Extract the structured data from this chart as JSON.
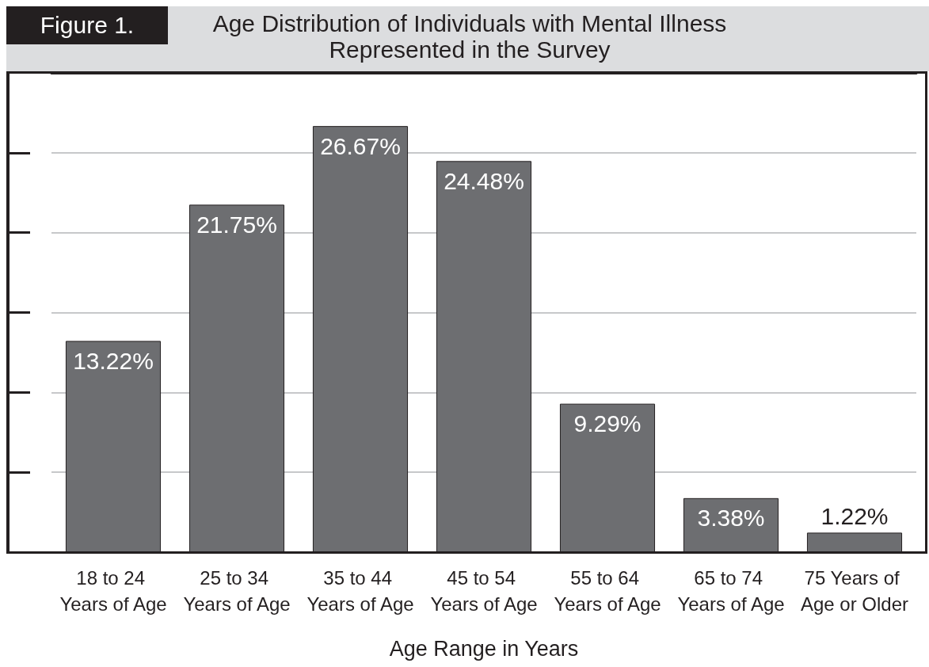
{
  "chart_data": {
    "type": "bar",
    "title": "Age Distribution of Individuals with Mental Illness Represented in the Survey",
    "xlabel": "Age Range in Years",
    "annotations": [
      "Figure 1."
    ],
    "categories": [
      "18 to 24 Years of Age",
      "25 to 34 Years of Age",
      "35 to 44 Years of Age",
      "45 to 54 Years of Age",
      "55 to 64 Years of Age",
      "65 to 74 Years of Age",
      "75 Years of Age or Older"
    ],
    "values": [
      13.22,
      21.75,
      26.67,
      24.48,
      9.29,
      3.38,
      1.22
    ],
    "value_labels": [
      "13.22%",
      "21.75%",
      "26.67%",
      "24.48%",
      "9.29%",
      "3.38%",
      "1.22%"
    ],
    "color": "#6d6e71",
    "ylim": [
      0,
      30
    ],
    "yticks": [
      {
        "value": 5,
        "label": null
      },
      {
        "value": 10,
        "label": null
      },
      {
        "value": 15,
        "label": null
      },
      {
        "value": 20,
        "label": null
      },
      {
        "value": 25,
        "label": null
      }
    ],
    "grid": "y",
    "tick_labels": "x"
  }
}
